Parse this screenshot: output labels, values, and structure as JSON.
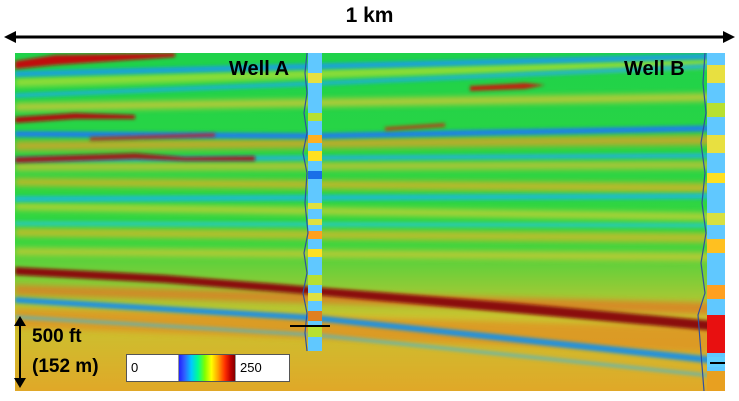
{
  "scale_bar": {
    "label": "1 km"
  },
  "wells": [
    {
      "label": "Well A"
    },
    {
      "label": "Well B"
    }
  ],
  "depth_scale": {
    "line1": "500 ft",
    "line2": "(152 m)"
  },
  "colorbar": {
    "min": "0",
    "max": "250"
  },
  "colors": {
    "background_green": "#22d94a",
    "horizon_red": "#9c0a0a",
    "horizon_blue": "#1aa0e0",
    "horizon_orange": "#e0a020"
  }
}
